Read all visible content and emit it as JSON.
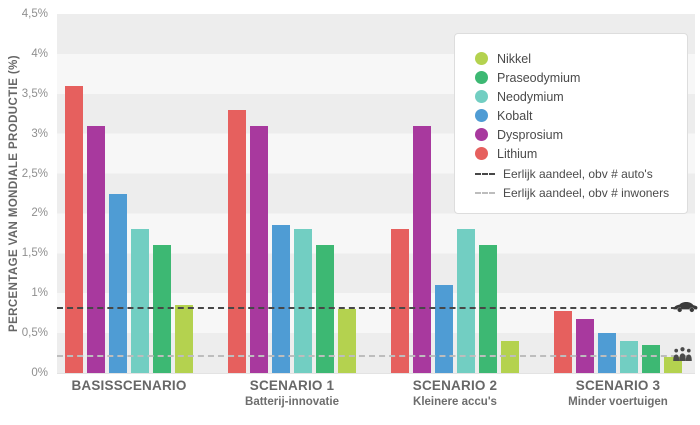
{
  "chart_data": {
    "type": "bar",
    "ylabel": "PERCENTAGE VAN MONDIALE PRODUCTIE (%)",
    "ymax": 4.5,
    "ytick_labels": [
      "0%",
      "0,5%",
      "1%",
      "1,5%",
      "2%",
      "2,5%",
      "3%",
      "3,5%",
      "4%",
      "4,5%"
    ],
    "ytick_values": [
      0,
      0.5,
      1,
      1.5,
      2,
      2.5,
      3,
      3.5,
      4,
      4.5
    ],
    "grid": "alternating-bands",
    "plot_band_colors": [
      "#ededed",
      "#f7f7f7"
    ],
    "categories": [
      {
        "label": "BASISSCENARIO",
        "sublabel": ""
      },
      {
        "label": "SCENARIO 1",
        "sublabel": "Batterij-innovatie"
      },
      {
        "label": "SCENARIO 2",
        "sublabel": "Kleinere accu's"
      },
      {
        "label": "SCENARIO 3",
        "sublabel": "Minder voertuigen"
      }
    ],
    "bar_order": [
      "Lithium",
      "Dysprosium",
      "Kobalt",
      "Neodymium",
      "Praseodymium",
      "Nikkel"
    ],
    "series": [
      {
        "name": "Lithium",
        "color": "#e6605e",
        "values": [
          3.6,
          3.3,
          1.8,
          0.78
        ]
      },
      {
        "name": "Dysprosium",
        "color": "#a8399e",
        "values": [
          3.1,
          3.1,
          3.1,
          0.68
        ]
      },
      {
        "name": "Kobalt",
        "color": "#4f9cd4",
        "values": [
          2.25,
          1.85,
          1.1,
          0.5
        ]
      },
      {
        "name": "Neodymium",
        "color": "#72cec2",
        "values": [
          1.8,
          1.8,
          1.8,
          0.4
        ]
      },
      {
        "name": "Praseodymium",
        "color": "#3db873",
        "values": [
          1.6,
          1.6,
          1.6,
          0.35
        ]
      },
      {
        "name": "Nikkel",
        "color": "#b4d24f",
        "values": [
          0.85,
          0.8,
          0.4,
          0.2
        ]
      }
    ],
    "reference_lines": [
      {
        "label": "Eerlijk aandeel, obv # auto's",
        "value": 0.8,
        "color": "#474747",
        "icon": "car"
      },
      {
        "label": "Eerlijk aandeel, obv # inwoners",
        "value": 0.2,
        "color": "#bdbdbd",
        "icon": "people"
      }
    ],
    "legend": {
      "position": "top-right",
      "items": [
        "Nikkel",
        "Praseodymium",
        "Neodymium",
        "Kobalt",
        "Dysprosium",
        "Lithium"
      ]
    }
  }
}
